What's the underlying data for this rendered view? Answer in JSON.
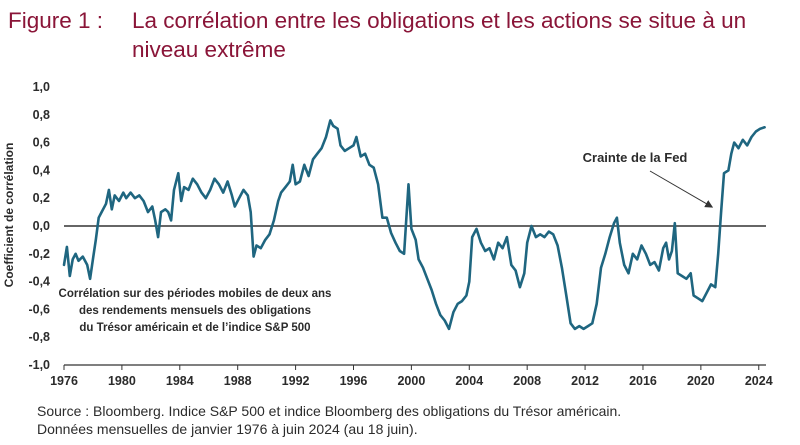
{
  "figure": {
    "label": "Figure 1 :",
    "title": "La corrélation entre les obligations et les actions se situe à un niveau extrême"
  },
  "footer": {
    "source": "Source : Bloomberg. Indice S&P 500 et indice Bloomberg des obligations du Trésor américain.",
    "dates": "Données mensuelles de janvier 1976 à juin 2024 (au 18 juin)."
  },
  "colors": {
    "line": "#1f6680",
    "title": "#8a1538",
    "zero_line": "#333333",
    "text": "#2b2b2b"
  },
  "chart_data": {
    "type": "line",
    "title": "La corrélation entre les obligations et les actions se situe à un niveau extrême",
    "xlabel": "",
    "ylabel": "Coefficient de corrélation",
    "xlim": [
      1976,
      2024.5
    ],
    "ylim": [
      -1.0,
      1.0
    ],
    "x_ticks": [
      "1976",
      "1980",
      "1984",
      "1988",
      "1992",
      "1996",
      "2000",
      "2004",
      "2008",
      "2012",
      "2016",
      "2020",
      "2024"
    ],
    "y_ticks": [
      "1,0",
      "0,8",
      "0,6",
      "0,4",
      "0,2",
      "0,0",
      "-0,2",
      "-0,4",
      "-0,6",
      "-0,8",
      "-1,0"
    ],
    "grid": false,
    "annotations": {
      "text_box": [
        "Corrélation sur des périodes mobiles de deux ans",
        "des rendements mensuels des obligations",
        "du Trésor américain et de l’indice S&P 500"
      ],
      "arrow_label": "Crainte de la Fed",
      "arrow_target": {
        "x": 2021.2,
        "y": 0.1
      }
    },
    "series": [
      {
        "values": [
          [
            1976.0,
            -0.28
          ],
          [
            1976.2,
            -0.15
          ],
          [
            1976.4,
            -0.36
          ],
          [
            1976.6,
            -0.24
          ],
          [
            1976.8,
            -0.2
          ],
          [
            1977.0,
            -0.25
          ],
          [
            1977.3,
            -0.22
          ],
          [
            1977.6,
            -0.28
          ],
          [
            1977.8,
            -0.38
          ],
          [
            1978.0,
            -0.24
          ],
          [
            1978.2,
            -0.1
          ],
          [
            1978.4,
            0.06
          ],
          [
            1978.6,
            0.1
          ],
          [
            1978.9,
            0.16
          ],
          [
            1979.1,
            0.26
          ],
          [
            1979.3,
            0.12
          ],
          [
            1979.5,
            0.22
          ],
          [
            1979.8,
            0.18
          ],
          [
            1980.1,
            0.24
          ],
          [
            1980.3,
            0.2
          ],
          [
            1980.6,
            0.24
          ],
          [
            1980.9,
            0.2
          ],
          [
            1981.2,
            0.22
          ],
          [
            1981.5,
            0.18
          ],
          [
            1981.8,
            0.1
          ],
          [
            1982.1,
            0.14
          ],
          [
            1982.3,
            0.04
          ],
          [
            1982.5,
            -0.08
          ],
          [
            1982.7,
            0.1
          ],
          [
            1983.0,
            0.12
          ],
          [
            1983.2,
            0.1
          ],
          [
            1983.4,
            0.04
          ],
          [
            1983.6,
            0.26
          ],
          [
            1983.9,
            0.38
          ],
          [
            1984.1,
            0.18
          ],
          [
            1984.3,
            0.28
          ],
          [
            1984.6,
            0.26
          ],
          [
            1984.9,
            0.34
          ],
          [
            1985.2,
            0.3
          ],
          [
            1985.5,
            0.24
          ],
          [
            1985.8,
            0.2
          ],
          [
            1986.1,
            0.26
          ],
          [
            1986.4,
            0.34
          ],
          [
            1986.7,
            0.3
          ],
          [
            1987.0,
            0.24
          ],
          [
            1987.3,
            0.32
          ],
          [
            1987.6,
            0.22
          ],
          [
            1987.8,
            0.14
          ],
          [
            1988.1,
            0.2
          ],
          [
            1988.4,
            0.26
          ],
          [
            1988.7,
            0.22
          ],
          [
            1988.9,
            0.1
          ],
          [
            1989.1,
            -0.22
          ],
          [
            1989.3,
            -0.14
          ],
          [
            1989.6,
            -0.16
          ],
          [
            1989.9,
            -0.1
          ],
          [
            1990.2,
            -0.06
          ],
          [
            1990.5,
            0.04
          ],
          [
            1990.8,
            0.18
          ],
          [
            1991.0,
            0.24
          ],
          [
            1991.3,
            0.28
          ],
          [
            1991.6,
            0.32
          ],
          [
            1991.8,
            0.44
          ],
          [
            1992.0,
            0.3
          ],
          [
            1992.3,
            0.32
          ],
          [
            1992.6,
            0.44
          ],
          [
            1992.9,
            0.36
          ],
          [
            1993.2,
            0.48
          ],
          [
            1993.5,
            0.52
          ],
          [
            1993.8,
            0.56
          ],
          [
            1994.1,
            0.64
          ],
          [
            1994.4,
            0.76
          ],
          [
            1994.6,
            0.72
          ],
          [
            1994.9,
            0.7
          ],
          [
            1995.1,
            0.58
          ],
          [
            1995.4,
            0.54
          ],
          [
            1995.7,
            0.56
          ],
          [
            1996.0,
            0.58
          ],
          [
            1996.2,
            0.64
          ],
          [
            1996.5,
            0.5
          ],
          [
            1996.8,
            0.52
          ],
          [
            1997.1,
            0.44
          ],
          [
            1997.4,
            0.42
          ],
          [
            1997.7,
            0.3
          ],
          [
            1998.0,
            0.06
          ],
          [
            1998.3,
            0.06
          ],
          [
            1998.6,
            -0.05
          ],
          [
            1998.9,
            -0.12
          ],
          [
            1999.2,
            -0.18
          ],
          [
            1999.5,
            -0.2
          ],
          [
            1999.8,
            0.3
          ],
          [
            2000.0,
            -0.02
          ],
          [
            2000.3,
            -0.1
          ],
          [
            2000.5,
            -0.24
          ],
          [
            2000.8,
            -0.3
          ],
          [
            2001.1,
            -0.38
          ],
          [
            2001.4,
            -0.46
          ],
          [
            2001.7,
            -0.56
          ],
          [
            2002.0,
            -0.64
          ],
          [
            2002.3,
            -0.68
          ],
          [
            2002.6,
            -0.74
          ],
          [
            2002.9,
            -0.62
          ],
          [
            2003.2,
            -0.56
          ],
          [
            2003.5,
            -0.54
          ],
          [
            2003.8,
            -0.5
          ],
          [
            2004.0,
            -0.4
          ],
          [
            2004.2,
            -0.08
          ],
          [
            2004.5,
            -0.02
          ],
          [
            2004.8,
            -0.12
          ],
          [
            2005.1,
            -0.18
          ],
          [
            2005.4,
            -0.16
          ],
          [
            2005.7,
            -0.24
          ],
          [
            2006.0,
            -0.12
          ],
          [
            2006.3,
            -0.16
          ],
          [
            2006.6,
            -0.08
          ],
          [
            2006.9,
            -0.28
          ],
          [
            2007.2,
            -0.32
          ],
          [
            2007.5,
            -0.44
          ],
          [
            2007.8,
            -0.34
          ],
          [
            2008.0,
            -0.12
          ],
          [
            2008.3,
            0.0
          ],
          [
            2008.6,
            -0.08
          ],
          [
            2008.9,
            -0.06
          ],
          [
            2009.2,
            -0.08
          ],
          [
            2009.5,
            -0.04
          ],
          [
            2009.8,
            -0.06
          ],
          [
            2010.1,
            -0.14
          ],
          [
            2010.4,
            -0.3
          ],
          [
            2010.7,
            -0.5
          ],
          [
            2011.0,
            -0.7
          ],
          [
            2011.3,
            -0.74
          ],
          [
            2011.6,
            -0.72
          ],
          [
            2011.9,
            -0.74
          ],
          [
            2012.2,
            -0.72
          ],
          [
            2012.5,
            -0.7
          ],
          [
            2012.8,
            -0.56
          ],
          [
            2013.1,
            -0.3
          ],
          [
            2013.4,
            -0.2
          ],
          [
            2013.7,
            -0.08
          ],
          [
            2014.0,
            0.02
          ],
          [
            2014.2,
            0.06
          ],
          [
            2014.4,
            -0.12
          ],
          [
            2014.7,
            -0.28
          ],
          [
            2015.0,
            -0.34
          ],
          [
            2015.3,
            -0.2
          ],
          [
            2015.6,
            -0.24
          ],
          [
            2015.9,
            -0.14
          ],
          [
            2016.2,
            -0.2
          ],
          [
            2016.5,
            -0.28
          ],
          [
            2016.8,
            -0.26
          ],
          [
            2017.1,
            -0.32
          ],
          [
            2017.4,
            -0.16
          ],
          [
            2017.6,
            -0.12
          ],
          [
            2017.8,
            -0.24
          ],
          [
            2018.0,
            -0.18
          ],
          [
            2018.2,
            0.02
          ],
          [
            2018.4,
            -0.34
          ],
          [
            2018.7,
            -0.36
          ],
          [
            2019.0,
            -0.38
          ],
          [
            2019.3,
            -0.34
          ],
          [
            2019.5,
            -0.5
          ],
          [
            2019.8,
            -0.52
          ],
          [
            2020.1,
            -0.54
          ],
          [
            2020.4,
            -0.48
          ],
          [
            2020.7,
            -0.42
          ],
          [
            2021.0,
            -0.44
          ],
          [
            2021.2,
            -0.2
          ],
          [
            2021.4,
            0.1
          ],
          [
            2021.6,
            0.38
          ],
          [
            2021.9,
            0.4
          ],
          [
            2022.1,
            0.52
          ],
          [
            2022.3,
            0.6
          ],
          [
            2022.6,
            0.56
          ],
          [
            2022.9,
            0.62
          ],
          [
            2023.2,
            0.58
          ],
          [
            2023.5,
            0.64
          ],
          [
            2023.8,
            0.68
          ],
          [
            2024.1,
            0.7
          ],
          [
            2024.4,
            0.71
          ]
        ]
      }
    ]
  }
}
